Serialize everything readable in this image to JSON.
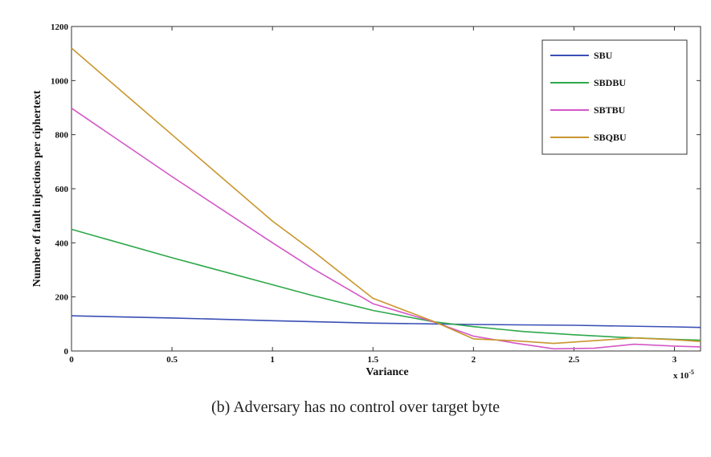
{
  "caption": "(b) Adversary has no control over target byte",
  "chart_data": {
    "type": "line",
    "title": "",
    "xlabel": "Variance",
    "ylabel": "Number of fault injections per ciphertext",
    "x_exponent_label": "x 10",
    "x_exponent_power": "-5",
    "xlim": [
      0,
      3.13
    ],
    "ylim": [
      0,
      1200
    ],
    "xticks": [
      0,
      0.5,
      1,
      1.5,
      2,
      2.5,
      3
    ],
    "xtick_labels": [
      "0",
      "0.5",
      "1",
      "1.5",
      "2",
      "2.5",
      "3"
    ],
    "yticks": [
      0,
      200,
      400,
      600,
      800,
      1000,
      1200
    ],
    "ytick_labels": [
      "0",
      "200",
      "400",
      "600",
      "800",
      "1000",
      "1200"
    ],
    "legend_position": "top-right",
    "grid": false,
    "series": [
      {
        "name": "SBU",
        "color": "#3a4fb5",
        "x": [
          0,
          0.5,
          1,
          1.5,
          1.8,
          2,
          2.5,
          3,
          3.13
        ],
        "y": [
          130,
          122,
          112,
          103,
          100,
          98,
          95,
          89,
          87
        ]
      },
      {
        "name": "SBDBU",
        "color": "#2ea84a",
        "x": [
          0,
          0.5,
          1,
          1.2,
          1.5,
          1.8,
          2,
          2.25,
          2.5,
          2.75,
          3,
          3.13
        ],
        "y": [
          450,
          345,
          245,
          205,
          150,
          108,
          90,
          72,
          60,
          50,
          43,
          40
        ]
      },
      {
        "name": "SBTBU",
        "color": "#d457c6",
        "x": [
          0,
          0.5,
          1,
          1.2,
          1.5,
          1.8,
          2,
          2.2,
          2.4,
          2.6,
          2.8,
          3,
          3.13
        ],
        "y": [
          898,
          645,
          400,
          305,
          175,
          108,
          55,
          30,
          8,
          10,
          25,
          18,
          15
        ]
      },
      {
        "name": "SBQBU",
        "color": "#c9962e",
        "x": [
          0,
          0.5,
          1,
          1.2,
          1.5,
          1.8,
          2,
          2.2,
          2.4,
          2.6,
          2.8,
          3,
          3.13
        ],
        "y": [
          1120,
          800,
          480,
          370,
          195,
          110,
          45,
          38,
          28,
          38,
          48,
          42,
          35
        ]
      }
    ]
  }
}
